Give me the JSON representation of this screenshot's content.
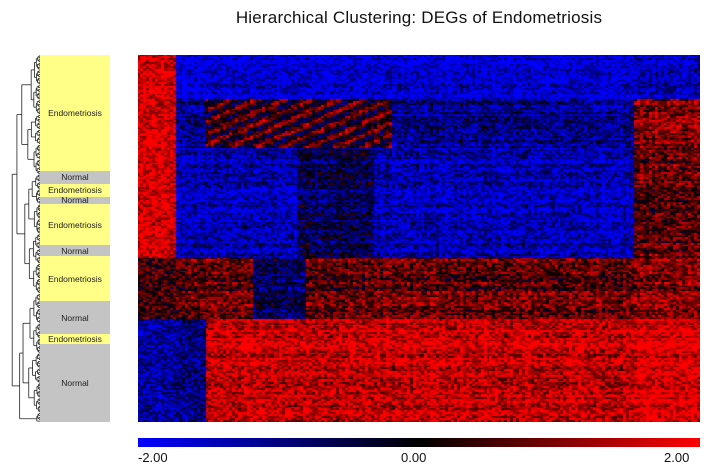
{
  "chart_data": {
    "type": "heatmap",
    "title": "Hierarchical Clustering: DEGs of Endometriosis",
    "sample_groups": [
      {
        "label": "Endometriosis",
        "rows": 62,
        "kind": "endometriosis"
      },
      {
        "label": "Normal",
        "rows": 7,
        "kind": "normal"
      },
      {
        "label": "Endometriosis",
        "rows": 7,
        "kind": "endometriosis"
      },
      {
        "label": "Normal",
        "rows": 4,
        "kind": "normal"
      },
      {
        "label": "Endometriosis",
        "rows": 22,
        "kind": "endometriosis"
      },
      {
        "label": "Normal",
        "rows": 6,
        "kind": "normal"
      },
      {
        "label": "Endometriosis",
        "rows": 24,
        "kind": "endometriosis"
      },
      {
        "label": "Normal",
        "rows": 18,
        "kind": "normal"
      },
      {
        "label": "Endometriosis",
        "rows": 5,
        "kind": "endometriosis"
      },
      {
        "label": "Normal",
        "rows": 42,
        "kind": "normal"
      }
    ],
    "color_scale": {
      "min": -2.0,
      "mid": 0.0,
      "max": 2.0,
      "low_color": "#0000ff",
      "mid_color": "#000000",
      "high_color": "#ff0000",
      "tick_labels": [
        "-2.00",
        "0.00",
        "2.00"
      ]
    },
    "columns": 190,
    "colors": {
      "endometriosis_band": "#ffff88",
      "normal_band": "#c4c4c4"
    }
  }
}
